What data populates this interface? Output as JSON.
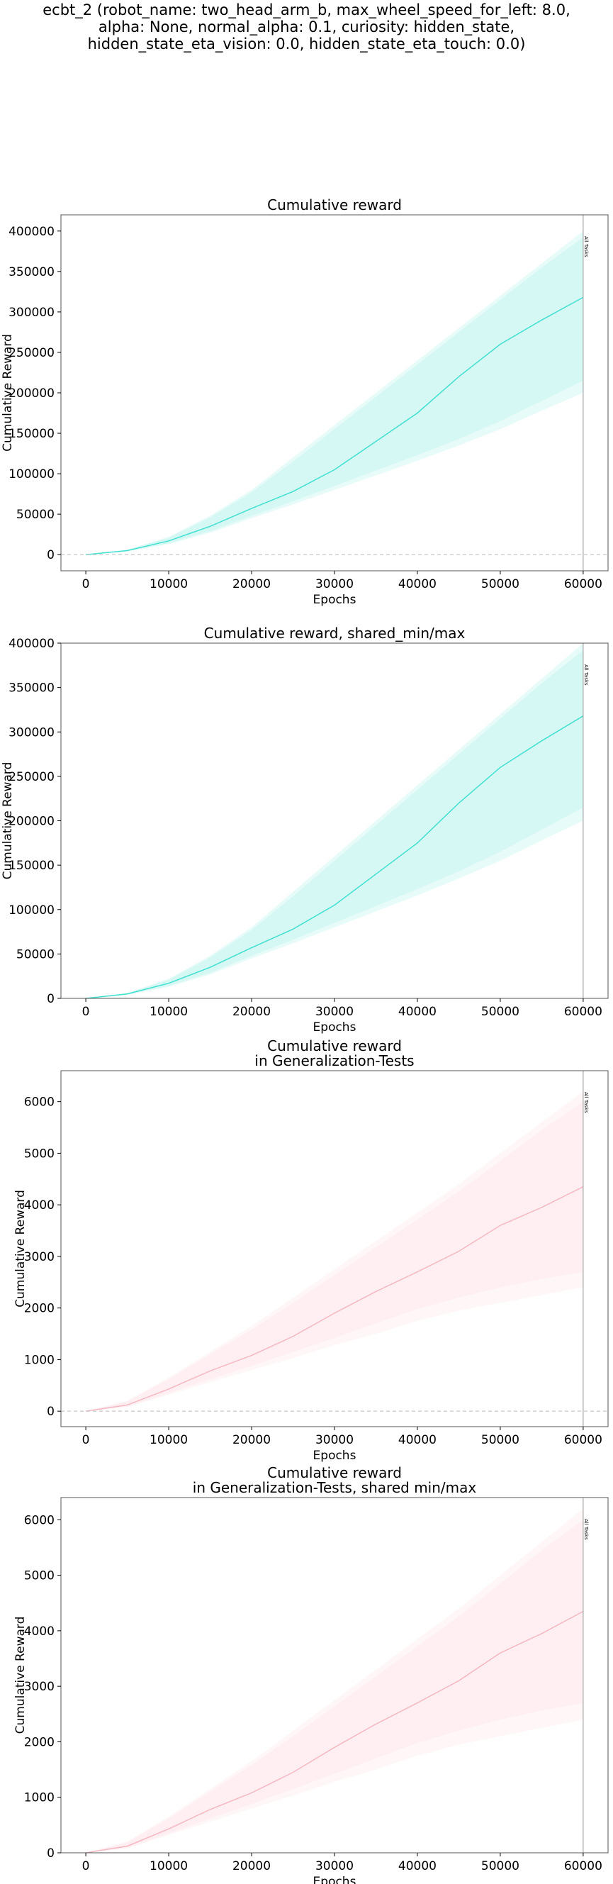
{
  "suptitle": [
    "ecbt_2 (robot_name: two_head_arm_b, max_wheel_speed_for_left: 8.0,",
    "alpha: None, normal_alpha: 0.1, curiosity: hidden_state,",
    "hidden_state_eta_vision: 0.0, hidden_state_eta_touch: 0.0)"
  ],
  "colors": {
    "train_line": "#40e0d0",
    "train_fill": "#d4f7f3",
    "gen_line": "#f4b8c2",
    "gen_fill": "#ffeef1"
  },
  "chart_data": [
    {
      "type": "line",
      "title": [
        "Cumulative reward"
      ],
      "xlabel": "Epochs",
      "ylabel": "Cumulative Reward",
      "xlim": [
        -3000,
        63000
      ],
      "ylim": [
        -20000,
        420000
      ],
      "xticks": [
        "0",
        "10000",
        "20000",
        "30000",
        "40000",
        "50000",
        "60000"
      ],
      "xtick_values": [
        0,
        10000,
        20000,
        30000,
        40000,
        50000,
        60000
      ],
      "yticks": [
        "0",
        "50000",
        "100000",
        "150000",
        "200000",
        "250000",
        "300000",
        "350000",
        "400000"
      ],
      "ytick_values": [
        0,
        50000,
        100000,
        150000,
        200000,
        250000,
        300000,
        350000,
        400000
      ],
      "zero_line": true,
      "vline": {
        "x": 60000,
        "label": "All Tasks"
      },
      "color_key": "train",
      "series": [
        {
          "x": [
            0,
            5000,
            10000,
            15000,
            20000,
            25000,
            30000,
            35000,
            40000,
            45000,
            50000,
            55000,
            60000
          ],
          "mean": [
            0,
            5000,
            17000,
            35000,
            57000,
            78000,
            105000,
            140000,
            175000,
            220000,
            260000,
            290000,
            318000
          ],
          "max": [
            0,
            6000,
            22000,
            48000,
            80000,
            120000,
            160000,
            200000,
            240000,
            280000,
            320000,
            360000,
            400000
          ],
          "min": [
            0,
            4000,
            13000,
            27000,
            45000,
            62000,
            80000,
            98000,
            116000,
            135000,
            155000,
            178000,
            200000
          ],
          "inner_max": [
            0,
            5800,
            21000,
            46000,
            77000,
            115000,
            155000,
            195000,
            235000,
            275000,
            315000,
            355000,
            392000
          ],
          "inner_min": [
            0,
            4200,
            14000,
            29000,
            48000,
            66000,
            85000,
            104000,
            123000,
            143000,
            165000,
            190000,
            215000
          ]
        }
      ]
    },
    {
      "type": "line",
      "title": [
        "Cumulative reward, shared_min/max"
      ],
      "xlabel": "Epochs",
      "ylabel": "Cumulative Reward",
      "xlim": [
        -3000,
        63000
      ],
      "ylim": [
        0,
        400000
      ],
      "xticks": [
        "0",
        "10000",
        "20000",
        "30000",
        "40000",
        "50000",
        "60000"
      ],
      "xtick_values": [
        0,
        10000,
        20000,
        30000,
        40000,
        50000,
        60000
      ],
      "yticks": [
        "0",
        "50000",
        "100000",
        "150000",
        "200000",
        "250000",
        "300000",
        "350000",
        "400000"
      ],
      "ytick_values": [
        0,
        50000,
        100000,
        150000,
        200000,
        250000,
        300000,
        350000,
        400000
      ],
      "zero_line": false,
      "vline": {
        "x": 60000,
        "label": "All Tasks"
      },
      "color_key": "train",
      "series": [
        {
          "x": [
            0,
            5000,
            10000,
            15000,
            20000,
            25000,
            30000,
            35000,
            40000,
            45000,
            50000,
            55000,
            60000
          ],
          "mean": [
            0,
            5000,
            17000,
            35000,
            57000,
            78000,
            105000,
            140000,
            175000,
            220000,
            260000,
            290000,
            318000
          ],
          "max": [
            0,
            6000,
            22000,
            48000,
            80000,
            120000,
            160000,
            200000,
            240000,
            280000,
            320000,
            360000,
            400000
          ],
          "min": [
            0,
            4000,
            13000,
            27000,
            45000,
            62000,
            80000,
            98000,
            116000,
            135000,
            155000,
            178000,
            200000
          ],
          "inner_max": [
            0,
            5800,
            21000,
            46000,
            77000,
            115000,
            155000,
            195000,
            235000,
            275000,
            315000,
            355000,
            392000
          ],
          "inner_min": [
            0,
            4200,
            14000,
            29000,
            48000,
            66000,
            85000,
            104000,
            123000,
            143000,
            165000,
            190000,
            215000
          ]
        }
      ]
    },
    {
      "type": "line",
      "title": [
        "Cumulative reward",
        "in Generalization-Tests"
      ],
      "xlabel": "Epochs",
      "ylabel": "Cumulative Reward",
      "xlim": [
        -3000,
        63000
      ],
      "ylim": [
        -300,
        6600
      ],
      "xticks": [
        "0",
        "10000",
        "20000",
        "30000",
        "40000",
        "50000",
        "60000"
      ],
      "xtick_values": [
        0,
        10000,
        20000,
        30000,
        40000,
        50000,
        60000
      ],
      "yticks": [
        "0",
        "1000",
        "2000",
        "3000",
        "4000",
        "5000",
        "6000"
      ],
      "ytick_values": [
        0,
        1000,
        2000,
        3000,
        4000,
        5000,
        6000
      ],
      "zero_line": true,
      "vline": {
        "x": 60000,
        "label": "All Tasks"
      },
      "color_key": "gen",
      "series": [
        {
          "x": [
            0,
            5000,
            10000,
            15000,
            20000,
            25000,
            30000,
            35000,
            40000,
            45000,
            50000,
            55000,
            60000
          ],
          "mean": [
            0,
            120,
            430,
            780,
            1080,
            1450,
            1900,
            2320,
            2700,
            3100,
            3600,
            3950,
            4350
          ],
          "max": [
            0,
            200,
            650,
            1150,
            1650,
            2200,
            2750,
            3300,
            3850,
            4400,
            5000,
            5600,
            6200
          ],
          "min": [
            0,
            80,
            320,
            560,
            800,
            1030,
            1280,
            1500,
            1750,
            1950,
            2100,
            2250,
            2400
          ],
          "inner_max": [
            0,
            190,
            620,
            1100,
            1580,
            2100,
            2640,
            3180,
            3720,
            4260,
            4850,
            5450,
            6000
          ],
          "inner_min": [
            0,
            90,
            350,
            620,
            880,
            1150,
            1420,
            1700,
            1980,
            2200,
            2400,
            2560,
            2700
          ]
        }
      ]
    },
    {
      "type": "line",
      "title": [
        "Cumulative reward",
        "in Generalization-Tests, shared min/max"
      ],
      "xlabel": "Epochs",
      "ylabel": "Cumulative Reward",
      "xlim": [
        -3000,
        63000
      ],
      "ylim": [
        0,
        6400
      ],
      "xticks": [
        "0",
        "10000",
        "20000",
        "30000",
        "40000",
        "50000",
        "60000"
      ],
      "xtick_values": [
        0,
        10000,
        20000,
        30000,
        40000,
        50000,
        60000
      ],
      "yticks": [
        "0",
        "1000",
        "2000",
        "3000",
        "4000",
        "5000",
        "6000"
      ],
      "ytick_values": [
        0,
        1000,
        2000,
        3000,
        4000,
        5000,
        6000
      ],
      "zero_line": false,
      "vline": {
        "x": 60000,
        "label": "All Tasks"
      },
      "color_key": "gen",
      "series": [
        {
          "x": [
            0,
            5000,
            10000,
            15000,
            20000,
            25000,
            30000,
            35000,
            40000,
            45000,
            50000,
            55000,
            60000
          ],
          "mean": [
            0,
            120,
            430,
            780,
            1080,
            1450,
            1900,
            2320,
            2700,
            3100,
            3600,
            3950,
            4350
          ],
          "max": [
            0,
            200,
            650,
            1150,
            1650,
            2200,
            2750,
            3300,
            3850,
            4400,
            5000,
            5600,
            6200
          ],
          "min": [
            0,
            80,
            320,
            560,
            800,
            1030,
            1280,
            1500,
            1750,
            1950,
            2100,
            2250,
            2400
          ],
          "inner_max": [
            0,
            190,
            620,
            1100,
            1580,
            2100,
            2640,
            3180,
            3720,
            4260,
            4850,
            5450,
            6000
          ],
          "inner_min": [
            0,
            90,
            350,
            620,
            880,
            1150,
            1420,
            1700,
            1980,
            2200,
            2400,
            2560,
            2700
          ]
        }
      ]
    }
  ]
}
